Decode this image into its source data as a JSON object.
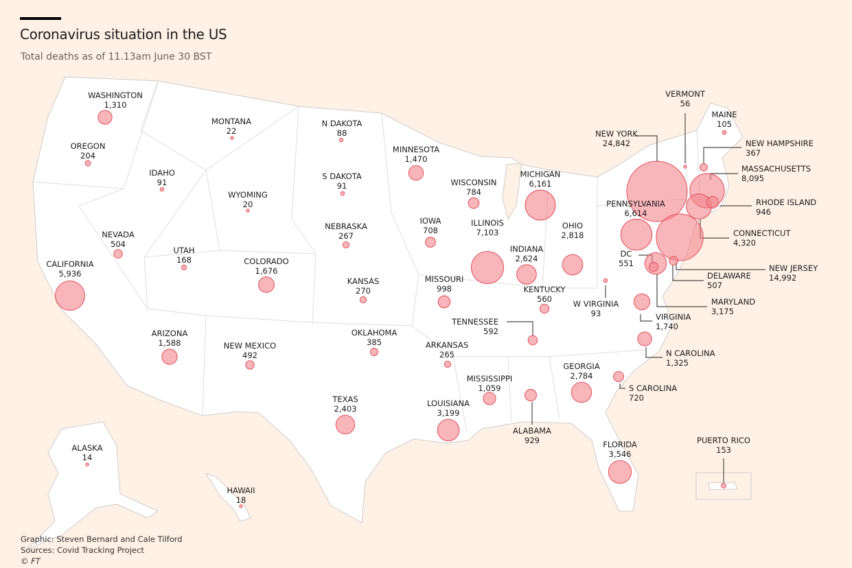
{
  "header": {
    "title": "Coronavirus situation in the US",
    "subtitle": "Total deaths as of 11.13am June 30 BST"
  },
  "footer": {
    "graphic": "Graphic: Steven Bernard and Cale Tilford",
    "sources": "Sources: Covid Tracking Project",
    "copyright": "© FT"
  },
  "colors": {
    "background": "#fff1e5",
    "land": "#ffffff",
    "border": "#cccccc",
    "bubble_fill": "#f4838c",
    "bubble_stroke": "#e0505b"
  },
  "scale": {
    "max_value": 24842
  },
  "states": [
    {
      "id": "WA",
      "name": "Washington",
      "value": "1,310",
      "n": 1310
    },
    {
      "id": "OR",
      "name": "Oregon",
      "value": "204",
      "n": 204
    },
    {
      "id": "MT",
      "name": "Montana",
      "value": "22",
      "n": 22
    },
    {
      "id": "ND",
      "name": "N Dakota",
      "value": "88",
      "n": 88
    },
    {
      "id": "MN",
      "name": "Minnesota",
      "value": "1,470",
      "n": 1470
    },
    {
      "id": "ID",
      "name": "Idaho",
      "value": "91",
      "n": 91
    },
    {
      "id": "SD",
      "name": "S Dakota",
      "value": "91",
      "n": 91
    },
    {
      "id": "WY",
      "name": "Wyoming",
      "value": "20",
      "n": 20
    },
    {
      "id": "WI",
      "name": "Wisconsin",
      "value": "784",
      "n": 784
    },
    {
      "id": "MI",
      "name": "Michigan",
      "value": "6,161",
      "n": 6161
    },
    {
      "id": "NV",
      "name": "Nevada",
      "value": "504",
      "n": 504
    },
    {
      "id": "UT",
      "name": "Utah",
      "value": "168",
      "n": 168
    },
    {
      "id": "CA",
      "name": "California",
      "value": "5,936",
      "n": 5936
    },
    {
      "id": "CO",
      "name": "Colorado",
      "value": "1,676",
      "n": 1676
    },
    {
      "id": "NE",
      "name": "Nebraska",
      "value": "267",
      "n": 267
    },
    {
      "id": "IA",
      "name": "Iowa",
      "value": "708",
      "n": 708
    },
    {
      "id": "IL",
      "name": "Illinois",
      "value": "7,103",
      "n": 7103
    },
    {
      "id": "IN",
      "name": "Indiana",
      "value": "2,624",
      "n": 2624
    },
    {
      "id": "OH",
      "name": "Ohio",
      "value": "2,818",
      "n": 2818
    },
    {
      "id": "KS",
      "name": "Kansas",
      "value": "270",
      "n": 270
    },
    {
      "id": "MO",
      "name": "Missouri",
      "value": "998",
      "n": 998
    },
    {
      "id": "KY",
      "name": "Kentucky",
      "value": "560",
      "n": 560
    },
    {
      "id": "WV",
      "name": "W Virginia",
      "value": "93",
      "n": 93
    },
    {
      "id": "TN",
      "name": "Tennessee",
      "value": "592",
      "n": 592
    },
    {
      "id": "AZ",
      "name": "Arizona",
      "value": "1,588",
      "n": 1588
    },
    {
      "id": "NM",
      "name": "New Mexico",
      "value": "492",
      "n": 492
    },
    {
      "id": "OK",
      "name": "Oklahoma",
      "value": "385",
      "n": 385
    },
    {
      "id": "AR",
      "name": "Arkansas",
      "value": "265",
      "n": 265
    },
    {
      "id": "MS",
      "name": "Mississippi",
      "value": "1,059",
      "n": 1059
    },
    {
      "id": "GA",
      "name": "Georgia",
      "value": "2,784",
      "n": 2784
    },
    {
      "id": "AL",
      "name": "Alabama",
      "value": "929",
      "n": 929
    },
    {
      "id": "TX",
      "name": "Texas",
      "value": "2,403",
      "n": 2403
    },
    {
      "id": "LA",
      "name": "Louisiana",
      "value": "3,199",
      "n": 3199
    },
    {
      "id": "FL",
      "name": "Florida",
      "value": "3,546",
      "n": 3546
    },
    {
      "id": "AK",
      "name": "Alaska",
      "value": "14",
      "n": 14
    },
    {
      "id": "HI",
      "name": "Hawaii",
      "value": "18",
      "n": 18
    },
    {
      "id": "PR",
      "name": "Puerto Rico",
      "value": "153",
      "n": 153
    },
    {
      "id": "VT",
      "name": "Vermont",
      "value": "56",
      "n": 56
    },
    {
      "id": "ME",
      "name": "Maine",
      "value": "105",
      "n": 105
    },
    {
      "id": "NH",
      "name": "New Hampshire",
      "value": "367",
      "n": 367
    },
    {
      "id": "MA",
      "name": "Massachusetts",
      "value": "8,095",
      "n": 8095
    },
    {
      "id": "RI",
      "name": "Rhode Island",
      "value": "946",
      "n": 946
    },
    {
      "id": "CT",
      "name": "Connecticut",
      "value": "4,320",
      "n": 4320
    },
    {
      "id": "NY",
      "name": "New York",
      "value": "24,842",
      "n": 24842
    },
    {
      "id": "PA",
      "name": "Pennsylvania",
      "value": "6,614",
      "n": 6614
    },
    {
      "id": "NJ",
      "name": "New Jersey",
      "value": "14,992",
      "n": 14992
    },
    {
      "id": "DE",
      "name": "Delaware",
      "value": "507",
      "n": 507
    },
    {
      "id": "DC",
      "name": "DC",
      "value": "551",
      "n": 551
    },
    {
      "id": "MD",
      "name": "Maryland",
      "value": "3,175",
      "n": 3175
    },
    {
      "id": "VA",
      "name": "Virginia",
      "value": "1,740",
      "n": 1740
    },
    {
      "id": "NC",
      "name": "N Carolina",
      "value": "1,325",
      "n": 1325
    },
    {
      "id": "SC",
      "name": "S Carolina",
      "value": "720",
      "n": 720
    }
  ]
}
